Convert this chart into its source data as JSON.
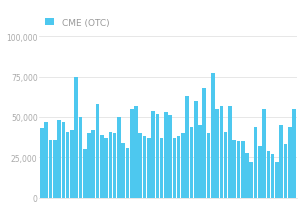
{
  "legend_label": "CME (OTC)",
  "bar_color": "#4DC8EF",
  "background_color": "#ffffff",
  "values": [
    43000,
    47000,
    36000,
    36000,
    48000,
    47000,
    41000,
    42000,
    75000,
    50000,
    30000,
    40000,
    42000,
    58000,
    39000,
    37000,
    41000,
    40000,
    50000,
    34000,
    31000,
    55000,
    57000,
    40000,
    38000,
    37000,
    54000,
    52000,
    37000,
    53000,
    51000,
    37000,
    38000,
    40000,
    63000,
    44000,
    60000,
    45000,
    68000,
    40000,
    77000,
    55000,
    57000,
    41000,
    57000,
    36000,
    35000,
    35000,
    28000,
    22000,
    44000,
    32000,
    55000,
    29000,
    27000,
    22000,
    45000,
    33000,
    44000,
    55000
  ],
  "ylim": [
    0,
    100000
  ],
  "yticks": [
    0,
    25000,
    50000,
    75000,
    100000
  ],
  "grid_color": "#dddddd",
  "label_color": "#aaaaaa",
  "legend_color": "#999999",
  "tick_fontsize": 5.5,
  "legend_fontsize": 6.5
}
